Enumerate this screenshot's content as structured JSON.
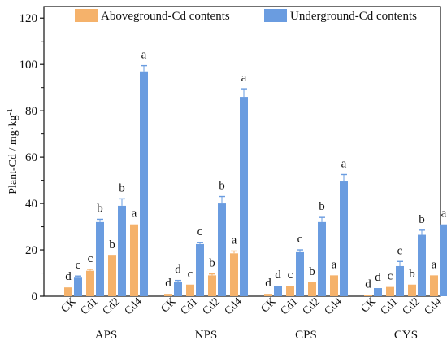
{
  "chart_data": {
    "type": "bar",
    "title": "",
    "ylabel": "Plant-Cd / mg·kg",
    "ylabel_sup": "-1",
    "ylim": [
      0,
      125
    ],
    "yticks": [
      0,
      20,
      40,
      60,
      80,
      100,
      120
    ],
    "grid": false,
    "legend_position": "top",
    "groups": [
      "APS",
      "NPS",
      "CPS",
      "CYS"
    ],
    "categories": [
      "CK",
      "Cd1",
      "Cd2",
      "Cd4"
    ],
    "series": [
      {
        "name": "Aboveground-Cd contents",
        "color": "#f5b26b",
        "values": [
          [
            3.8,
            11.0,
            17.5,
            31.0
          ],
          [
            1.0,
            5.0,
            9.0,
            18.5
          ],
          [
            1.0,
            4.5,
            6.0,
            9.0
          ],
          [
            0.5,
            4.0,
            5.0,
            9.0
          ]
        ],
        "errors": [
          [
            0,
            0.6,
            0,
            0
          ],
          [
            0,
            0,
            0.6,
            1.0
          ],
          [
            0,
            0,
            0,
            0
          ],
          [
            0,
            0,
            0,
            0
          ]
        ],
        "labels": [
          [
            "d",
            "c",
            "b",
            "a"
          ],
          [
            "d",
            "c",
            "b",
            "a"
          ],
          [
            "d",
            "c",
            "b",
            "a"
          ],
          [
            "d",
            "c",
            "b",
            "a"
          ]
        ]
      },
      {
        "name": "Underground-Cd contents",
        "color": "#6a9ce0",
        "values": [
          [
            8.0,
            32.0,
            39.0,
            97.0
          ],
          [
            6.0,
            22.5,
            40.0,
            86.0
          ],
          [
            4.5,
            19.0,
            32.0,
            49.5
          ],
          [
            3.5,
            13.0,
            26.5,
            31.0
          ]
        ],
        "errors": [
          [
            0.7,
            1.2,
            3.0,
            2.5
          ],
          [
            0.8,
            0.6,
            3.0,
            3.5
          ],
          [
            0,
            1.0,
            2.0,
            3.0
          ],
          [
            0,
            2.0,
            2.0,
            0
          ]
        ],
        "labels": [
          [
            "c",
            "b",
            "b",
            "a"
          ],
          [
            "d",
            "c",
            "b",
            "a"
          ],
          [
            "d",
            "c",
            "b",
            "a"
          ],
          [
            "d",
            "c",
            "b",
            "a"
          ]
        ]
      }
    ]
  }
}
